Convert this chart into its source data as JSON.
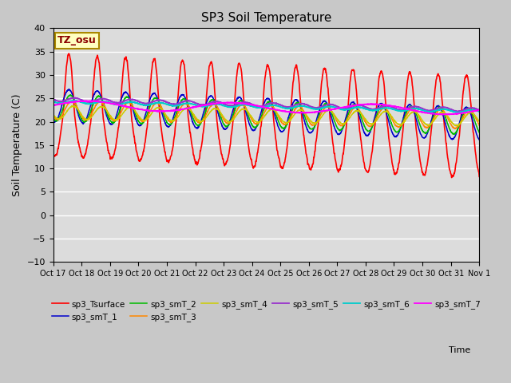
{
  "title": "SP3 Soil Temperature",
  "ylabel": "Soil Temperature (C)",
  "xlabel_time": "Time",
  "annotation": "TZ_osu",
  "annotation_color": "#8B0000",
  "annotation_bg": "#FFFFC0",
  "annotation_edge": "#AA8800",
  "ylim": [
    -10,
    40
  ],
  "background_color": "#C8C8C8",
  "plot_bg": "#DCDCDC",
  "x_tick_labels": [
    "Oct 17",
    "Oct 18",
    "Oct 19",
    "Oct 20",
    "Oct 21",
    "Oct 22",
    "Oct 23",
    "Oct 24",
    "Oct 25",
    "Oct 26",
    "Oct 27",
    "Oct 28",
    "Oct 29",
    "Oct 30",
    "Oct 31",
    "Nov 1"
  ],
  "n_days": 15,
  "series": [
    {
      "name": "sp3_Tsurface",
      "color": "#FF0000",
      "lw": 1.2
    },
    {
      "name": "sp3_smT_1",
      "color": "#0000CC",
      "lw": 1.1
    },
    {
      "name": "sp3_smT_2",
      "color": "#00BB00",
      "lw": 1.1
    },
    {
      "name": "sp3_smT_3",
      "color": "#FF8800",
      "lw": 1.1
    },
    {
      "name": "sp3_smT_4",
      "color": "#CCCC00",
      "lw": 1.1
    },
    {
      "name": "sp3_smT_5",
      "color": "#9933CC",
      "lw": 1.3
    },
    {
      "name": "sp3_smT_6",
      "color": "#00CCCC",
      "lw": 1.3
    },
    {
      "name": "sp3_smT_7",
      "color": "#FF00FF",
      "lw": 1.3
    }
  ],
  "grid_color": "#FFFFFF",
  "grid_lw": 1.0,
  "title_fontsize": 11,
  "ylabel_fontsize": 9,
  "tick_fontsize": 8,
  "xtick_fontsize": 7
}
